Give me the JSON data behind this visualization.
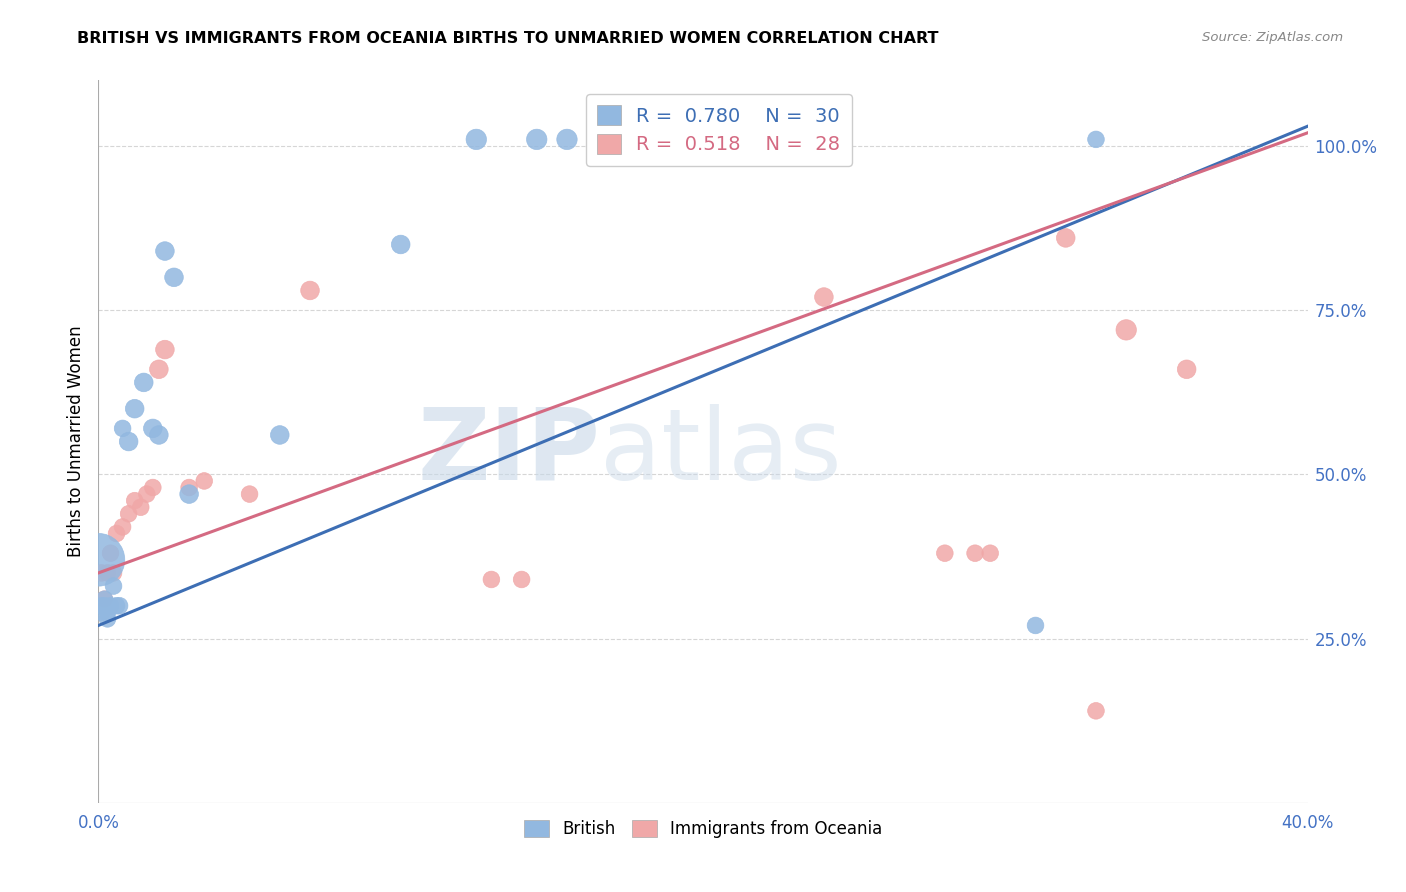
{
  "title": "BRITISH VS IMMIGRANTS FROM OCEANIA BIRTHS TO UNMARRIED WOMEN CORRELATION CHART",
  "source": "Source: ZipAtlas.com",
  "ylabel": "Births to Unmarried Women",
  "xlim": [
    0.0,
    0.4
  ],
  "ylim": [
    0.0,
    1.1
  ],
  "legend_r_british": "0.780",
  "legend_n_british": "30",
  "legend_r_oceania": "0.518",
  "legend_n_oceania": "28",
  "british_color": "#92b8e0",
  "oceania_color": "#f0a8a8",
  "trendline_british_color": "#3d6eb4",
  "trendline_oceania_color": "#d46a82",
  "watermark_zip": "ZIP",
  "watermark_atlas": "atlas",
  "british_x": [
    0.0,
    0.001,
    0.001,
    0.002,
    0.002,
    0.003,
    0.003,
    0.004,
    0.005,
    0.006,
    0.007,
    0.008,
    0.01,
    0.012,
    0.015,
    0.018,
    0.02,
    0.022,
    0.025,
    0.03,
    0.06,
    0.1,
    0.125,
    0.145,
    0.155,
    0.165,
    0.175,
    0.185,
    0.31,
    0.33
  ],
  "british_y": [
    0.37,
    0.29,
    0.3,
    0.3,
    0.31,
    0.28,
    0.29,
    0.3,
    0.33,
    0.3,
    0.3,
    0.57,
    0.55,
    0.6,
    0.64,
    0.57,
    0.56,
    0.84,
    0.8,
    0.47,
    0.56,
    0.85,
    1.01,
    1.01,
    1.01,
    1.01,
    1.01,
    1.01,
    0.27,
    1.01
  ],
  "british_size_raw": [
    80,
    8,
    8,
    8,
    8,
    8,
    8,
    8,
    8,
    8,
    8,
    8,
    10,
    10,
    10,
    10,
    10,
    10,
    10,
    10,
    10,
    10,
    12,
    12,
    12,
    12,
    12,
    12,
    8,
    8
  ],
  "oceania_x": [
    0.001,
    0.002,
    0.003,
    0.004,
    0.005,
    0.006,
    0.008,
    0.01,
    0.012,
    0.014,
    0.016,
    0.018,
    0.02,
    0.022,
    0.03,
    0.035,
    0.05,
    0.07,
    0.13,
    0.14,
    0.24,
    0.28,
    0.29,
    0.295,
    0.32,
    0.33,
    0.34,
    0.36
  ],
  "oceania_y": [
    0.35,
    0.31,
    0.35,
    0.38,
    0.35,
    0.41,
    0.42,
    0.44,
    0.46,
    0.45,
    0.47,
    0.48,
    0.66,
    0.69,
    0.48,
    0.49,
    0.47,
    0.78,
    0.34,
    0.34,
    0.77,
    0.38,
    0.38,
    0.38,
    0.86,
    0.14,
    0.72,
    0.66
  ],
  "oceania_size_raw": [
    8,
    8,
    8,
    8,
    8,
    8,
    8,
    8,
    8,
    8,
    8,
    8,
    10,
    10,
    8,
    8,
    8,
    10,
    8,
    8,
    10,
    8,
    8,
    8,
    10,
    8,
    12,
    10
  ]
}
